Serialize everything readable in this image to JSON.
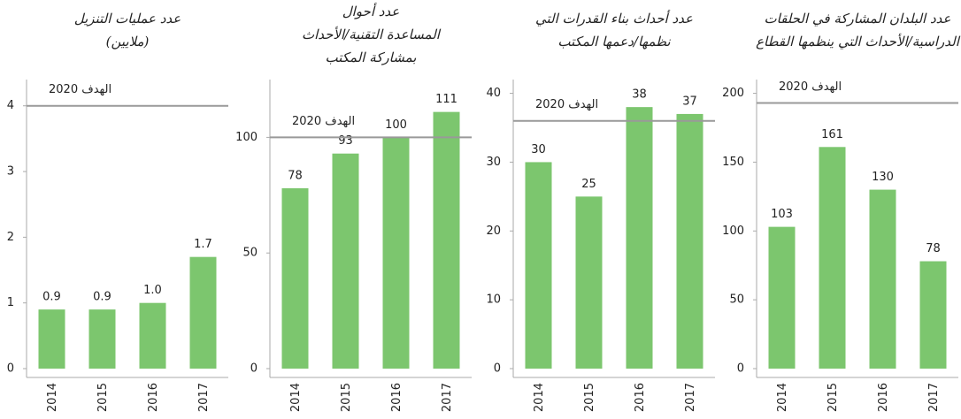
{
  "chart_data": [
    {
      "type": "bar",
      "title": [
        "عدد عمليات التنزيل",
        "(ملايين)"
      ],
      "categories": [
        "2014",
        "2015",
        "2016",
        "2017"
      ],
      "values": [
        0.9,
        0.9,
        1.0,
        1.7
      ],
      "value_labels": [
        "0.9",
        "0.9",
        "1.0",
        "1.7"
      ],
      "color": "#7cc66e",
      "ylim": [
        0,
        4.4
      ],
      "yticks": [
        0,
        1,
        2,
        3,
        4
      ],
      "target": {
        "value": 4,
        "label": "الهدف 2020"
      }
    },
    {
      "type": "bar",
      "title": [
        "عدد أحوال",
        "المساعدة التقنية/الأحداث",
        "بمشاركة المكتب"
      ],
      "categories": [
        "2014",
        "2015",
        "2016",
        "2017"
      ],
      "values": [
        78,
        93,
        100,
        111
      ],
      "color": "#7cc66e",
      "ylim": [
        0,
        125
      ],
      "yticks": [
        0,
        50,
        100
      ],
      "target": {
        "value": 100,
        "label": "الهدف 2020"
      }
    },
    {
      "type": "bar",
      "title": [
        "عدد أحداث بناء القدرات التي",
        "نظمها/دعمها المكتب"
      ],
      "categories": [
        "2014",
        "2015",
        "2016",
        "2017"
      ],
      "values": [
        30,
        25,
        38,
        37
      ],
      "color": "#7cc66e",
      "ylim": [
        0,
        42
      ],
      "yticks": [
        0,
        10,
        20,
        30,
        40
      ],
      "target": {
        "value": 36,
        "label": "الهدف 2020"
      }
    },
    {
      "type": "bar",
      "title": [
        "عدد البلدان المشاركة في الحلقات",
        "الدراسية/الأحداث التي ينظمها القطاع"
      ],
      "categories": [
        "2014",
        "2015",
        "2016",
        "2017"
      ],
      "values": [
        103,
        161,
        130,
        78
      ],
      "color": "#7cc66e",
      "ylim": [
        0,
        210
      ],
      "yticks": [
        0,
        50,
        100,
        150,
        200
      ],
      "target": {
        "value": 193,
        "label": "الهدف 2020"
      }
    }
  ]
}
